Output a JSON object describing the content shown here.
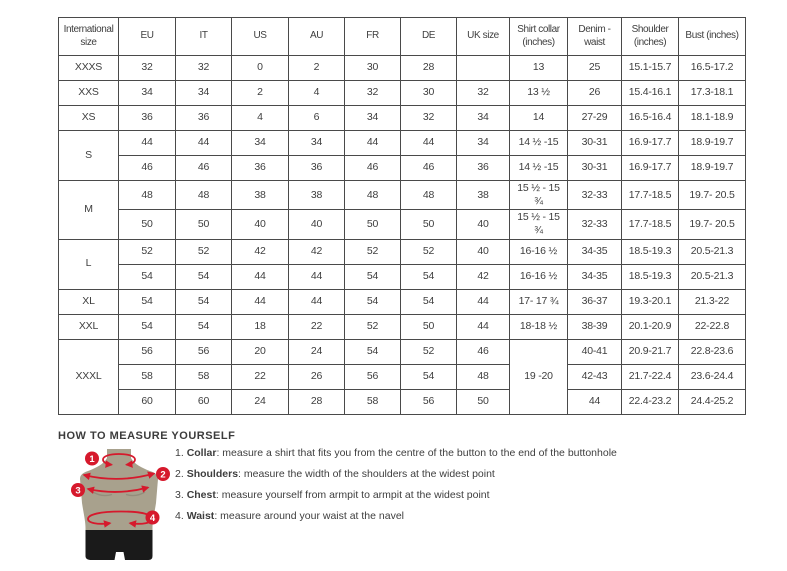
{
  "colors": {
    "accent_red": "#d6192c",
    "text": "#3e3e3e",
    "table_border": "#4a4a4a",
    "mannequin_body": "#a8a18d",
    "mannequin_shorts": "#1a1a1a"
  },
  "size_chart": {
    "headers": [
      "International size",
      "EU",
      "IT",
      "US",
      "AU",
      "FR",
      "DE",
      "UK size",
      "Shirt collar (inches)",
      "Denim - waist",
      "Shoulder (inches)",
      "Bust (inches)"
    ],
    "rows": [
      {
        "size": "XXXS",
        "size_span": 1,
        "cells": [
          "32",
          "32",
          "0",
          "2",
          "30",
          "28",
          ""
        ],
        "collar": "13",
        "collar_span": 1,
        "tail": [
          "25",
          "15.1-15.7",
          "16.5-17.2"
        ]
      },
      {
        "size": "XXS",
        "size_span": 1,
        "cells": [
          "34",
          "34",
          "2",
          "4",
          "32",
          "30",
          "32"
        ],
        "collar": "13 ½",
        "collar_span": 1,
        "tail": [
          "26",
          "15.4-16.1",
          "17.3-18.1"
        ]
      },
      {
        "size": "XS",
        "size_span": 1,
        "cells": [
          "36",
          "36",
          "4",
          "6",
          "34",
          "32",
          "34"
        ],
        "collar": "14",
        "collar_span": 1,
        "tail": [
          "27-29",
          "16.5-16.4",
          "18.1-18.9"
        ]
      },
      {
        "size": "S",
        "size_span": 2,
        "cells": [
          "44",
          "44",
          "34",
          "34",
          "44",
          "44",
          "34"
        ],
        "collar": "14 ½ -15",
        "collar_span": 1,
        "tail": [
          "30-31",
          "16.9-17.7",
          "18.9-19.7"
        ]
      },
      {
        "cells": [
          "46",
          "46",
          "36",
          "36",
          "46",
          "46",
          "36"
        ],
        "collar": "14 ½ -15",
        "collar_span": 1,
        "tail": [
          "30-31",
          "16.9-17.7",
          "18.9-19.7"
        ]
      },
      {
        "size": "M",
        "size_span": 2,
        "cells": [
          "48",
          "48",
          "38",
          "38",
          "48",
          "48",
          "38"
        ],
        "collar": "15 ½ - 15 ¾",
        "collar_span": 1,
        "tail": [
          "32-33",
          "17.7-18.5",
          "19.7- 20.5"
        ]
      },
      {
        "cells": [
          "50",
          "50",
          "40",
          "40",
          "50",
          "50",
          "40"
        ],
        "collar": "15 ½ - 15 ¾",
        "collar_span": 1,
        "tail": [
          "32-33",
          "17.7-18.5",
          "19.7- 20.5"
        ]
      },
      {
        "size": "L",
        "size_span": 2,
        "cells": [
          "52",
          "52",
          "42",
          "42",
          "52",
          "52",
          "40"
        ],
        "collar": "16-16 ½",
        "collar_span": 1,
        "tail": [
          "34-35",
          "18.5-19.3",
          "20.5-21.3"
        ]
      },
      {
        "cells": [
          "54",
          "54",
          "44",
          "44",
          "54",
          "54",
          "42"
        ],
        "collar": "16-16 ½",
        "collar_span": 1,
        "tail": [
          "34-35",
          "18.5-19.3",
          "20.5-21.3"
        ]
      },
      {
        "size": "XL",
        "size_span": 1,
        "cells": [
          "54",
          "54",
          "44",
          "44",
          "54",
          "54",
          "44"
        ],
        "collar": "17- 17 ¾",
        "collar_span": 1,
        "tail": [
          "36-37",
          "19.3-20.1",
          "21.3-22"
        ]
      },
      {
        "size": "XXL",
        "size_span": 1,
        "cells": [
          "54",
          "54",
          "18",
          "22",
          "52",
          "50",
          "44"
        ],
        "collar": "18-18 ½",
        "collar_span": 1,
        "tail": [
          "38-39",
          "20.1-20.9",
          "22-22.8"
        ]
      },
      {
        "size": "XXXL",
        "size_span": 3,
        "cells": [
          "56",
          "56",
          "20",
          "24",
          "54",
          "52",
          "46"
        ],
        "collar": "19 -20",
        "collar_span": 3,
        "tail": [
          "40-41",
          "20.9-21.7",
          "22.8-23.6"
        ]
      },
      {
        "cells": [
          "58",
          "58",
          "22",
          "26",
          "56",
          "54",
          "48"
        ],
        "tail": [
          "42-43",
          "21.7-22.4",
          "23.6-24.4"
        ]
      },
      {
        "cells": [
          "60",
          "60",
          "24",
          "28",
          "58",
          "56",
          "50"
        ],
        "tail": [
          "44",
          "22.4-23.2",
          "24.4-25.2"
        ]
      }
    ]
  },
  "measure_guide": {
    "title": "HOW TO MEASURE YOURSELF",
    "figure_markers": [
      "1",
      "2",
      "3",
      "4"
    ],
    "instructions": [
      {
        "num": "1. ",
        "label": "Collar",
        "text": ": measure a shirt that fits you from the centre of the button to the end of the buttonhole"
      },
      {
        "num": "2. ",
        "label": "Shoulders",
        "text": ": measure the width of the shoulders at the widest point"
      },
      {
        "num": "3. ",
        "label": "Chest",
        "text": ": measure yourself from armpit to armpit at the widest point"
      },
      {
        "num": "4. ",
        "label": "Waist",
        "text": ": measure around your waist at the navel"
      }
    ]
  }
}
